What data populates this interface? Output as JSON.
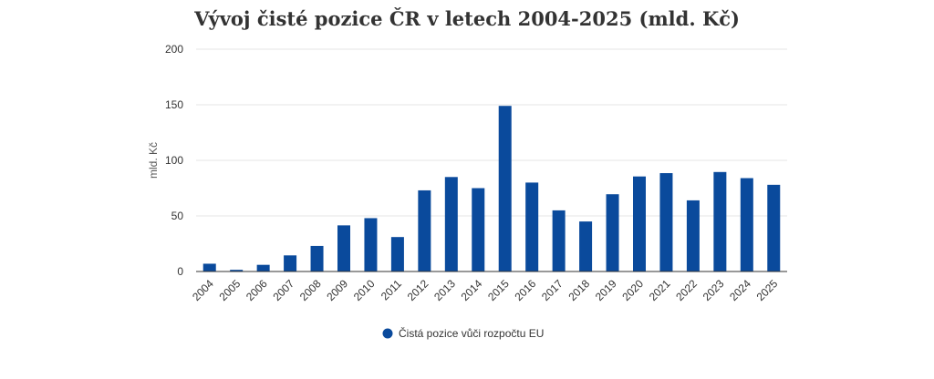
{
  "chart_data": {
    "type": "bar",
    "title": "Vývoj čisté pozice ČR v letech 2004-2025 (mld. Kč)",
    "xlabel": "",
    "ylabel": "mld. Kč",
    "ylim": [
      0,
      200
    ],
    "yticks": [
      "0",
      "50",
      "100",
      "150",
      "200"
    ],
    "categories": [
      "2004",
      "2005",
      "2006",
      "2007",
      "2008",
      "2009",
      "2010",
      "2011",
      "2012",
      "2013",
      "2014",
      "2015",
      "2016",
      "2017",
      "2018",
      "2019",
      "2020",
      "2021",
      "2022",
      "2023",
      "2024",
      "2025"
    ],
    "series": [
      {
        "name": "Čistá pozice vůči rozpočtu EU",
        "color": "#0a4a9c",
        "values": [
          7,
          1.5,
          6,
          14.5,
          23,
          41.5,
          48,
          31,
          73,
          85,
          75,
          149,
          80,
          55,
          45,
          69.5,
          85.5,
          88.5,
          64,
          89.5,
          84,
          78
        ]
      }
    ],
    "grid": true,
    "legend": "bottom-center"
  }
}
